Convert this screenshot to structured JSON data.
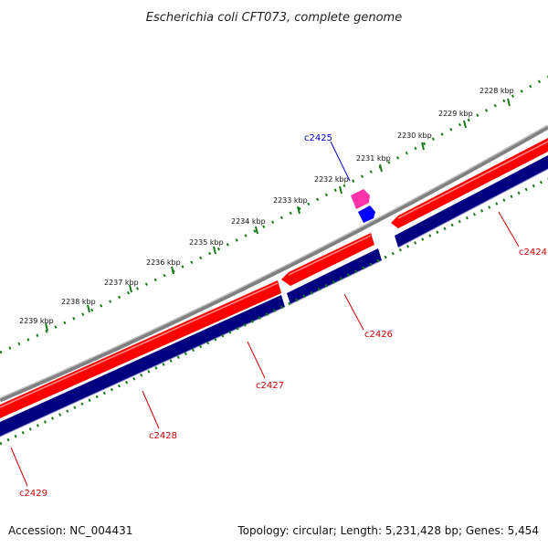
{
  "title": "Escherichia coli CFT073, complete genome",
  "footer": {
    "accession": "Accession: NC_004431",
    "topology": "Topology: circular; Length: 5,231,428 bp; Genes: 5,454"
  },
  "colors": {
    "backbone": "#808080",
    "forward_gene": "#ff0000",
    "reverse_gene": "#000080",
    "tick": "#1a7a1a",
    "gene_label": "#cc0000",
    "highlight_label": "#0000cc",
    "pink_feature": "#ff33aa",
    "blue_feature": "#0000ff"
  },
  "kbp_ticks": [
    "2228 kbp",
    "2229 kbp",
    "2230 kbp",
    "2231 kbp",
    "2232 kbp",
    "2233 kbp",
    "2234 kbp",
    "2235 kbp",
    "2236 kbp",
    "2237 kbp",
    "2238 kbp",
    "2239 kbp"
  ],
  "genes": {
    "c2424": "c2424",
    "c2425": "c2425",
    "c2426": "c2426",
    "c2427": "c2427",
    "c2428": "c2428",
    "c2429": "c2429"
  }
}
